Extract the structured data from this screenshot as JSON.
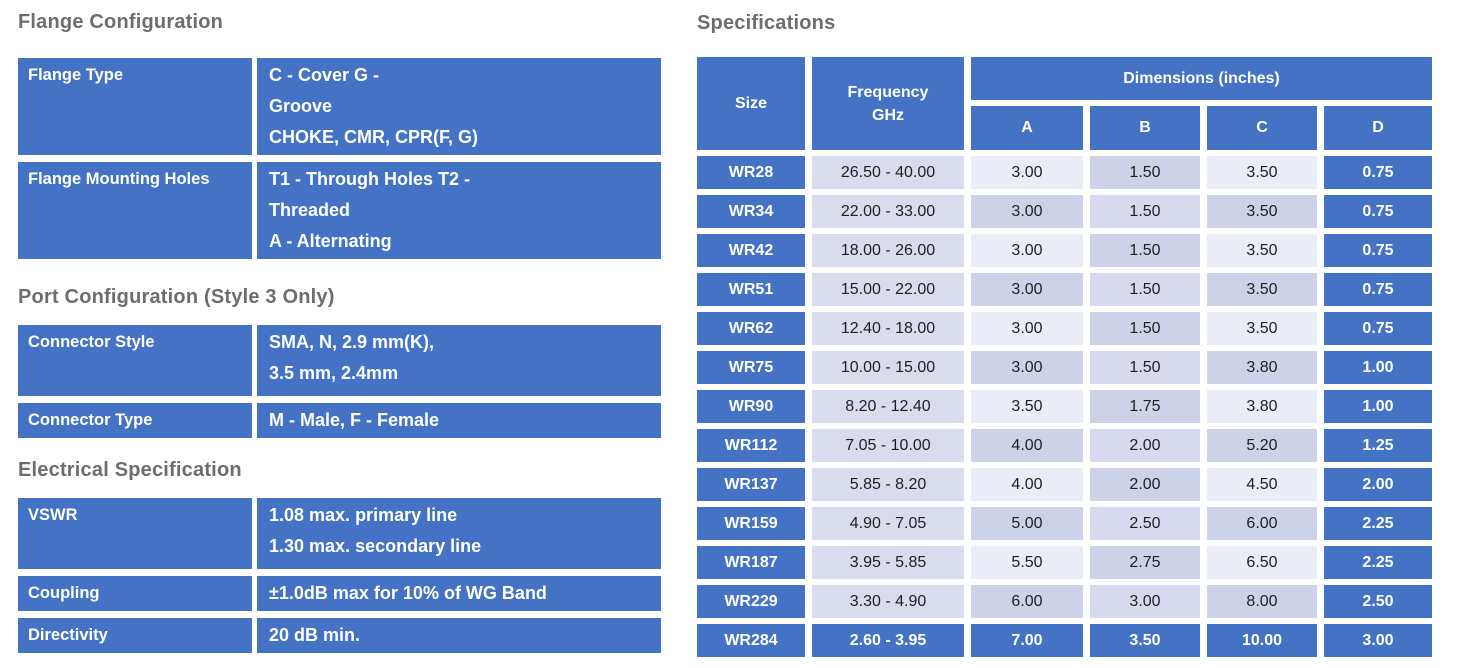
{
  "colors": {
    "accent_blue": "#4472c4",
    "heading_gray": "#6d6d6d",
    "freq_cell": "#d8dcec",
    "light_cell": "#eaecf6",
    "medium_cell": "#cdd2e9"
  },
  "left": {
    "sections": [
      {
        "heading": "Flange Configuration",
        "rows": [
          {
            "label": "Flange Type",
            "lines": [
              "C - Cover G -",
              "Groove",
              "CHOKE, CMR, CPR(F, G)"
            ]
          },
          {
            "label": "Flange Mounting Holes",
            "lines": [
              "T1 - Through Holes T2 -",
              "Threaded",
              "A - Alternating"
            ]
          }
        ]
      },
      {
        "heading": "Port Configuration (Style 3 Only)",
        "rows": [
          {
            "label": "Connector Style",
            "lines": [
              "SMA, N, 2.9 mm(K),",
              "3.5 mm, 2.4mm"
            ]
          },
          {
            "label": "Connector Type",
            "lines": [
              "M - Male, F - Female"
            ]
          }
        ]
      },
      {
        "heading": "Electrical Specification",
        "rows": [
          {
            "label": "VSWR",
            "lines": [
              "1.08 max. primary line",
              "1.30 max. secondary line"
            ]
          },
          {
            "label": "Coupling",
            "lines": [
              "±1.0dB max for 10% of WG Band"
            ]
          },
          {
            "label": "Directivity",
            "lines": [
              "20 dB min."
            ]
          }
        ]
      }
    ]
  },
  "right": {
    "heading": "Specifications",
    "table": {
      "col_size": "Size",
      "col_freq_line1": "Frequency",
      "col_freq_line2": "GHz",
      "dims_banner": "Dimensions  (inches)",
      "dim_cols": [
        "A",
        "B",
        "C",
        "D"
      ],
      "rows": [
        {
          "size": "WR28",
          "freq": "26.50 - 40.00",
          "a": "3.00",
          "b": "1.50",
          "c": "3.50",
          "d": "0.75"
        },
        {
          "size": "WR34",
          "freq": "22.00 - 33.00",
          "a": "3.00",
          "b": "1.50",
          "c": "3.50",
          "d": "0.75"
        },
        {
          "size": "WR42",
          "freq": "18.00 - 26.00",
          "a": "3.00",
          "b": "1.50",
          "c": "3.50",
          "d": "0.75"
        },
        {
          "size": "WR51",
          "freq": "15.00 - 22.00",
          "a": "3.00",
          "b": "1.50",
          "c": "3.50",
          "d": "0.75"
        },
        {
          "size": "WR62",
          "freq": "12.40 - 18.00",
          "a": "3.00",
          "b": "1.50",
          "c": "3.50",
          "d": "0.75"
        },
        {
          "size": "WR75",
          "freq": "10.00 - 15.00",
          "a": "3.00",
          "b": "1.50",
          "c": "3.80",
          "d": "1.00"
        },
        {
          "size": "WR90",
          "freq": "8.20 - 12.40",
          "a": "3.50",
          "b": "1.75",
          "c": "3.80",
          "d": "1.00"
        },
        {
          "size": "WR112",
          "freq": "7.05 - 10.00",
          "a": "4.00",
          "b": "2.00",
          "c": "5.20",
          "d": "1.25"
        },
        {
          "size": "WR137",
          "freq": "5.85 - 8.20",
          "a": "4.00",
          "b": "2.00",
          "c": "4.50",
          "d": "2.00"
        },
        {
          "size": "WR159",
          "freq": "4.90 - 7.05",
          "a": "5.00",
          "b": "2.50",
          "c": "6.00",
          "d": "2.25"
        },
        {
          "size": "WR187",
          "freq": "3.95 - 5.85",
          "a": "5.50",
          "b": "2.75",
          "c": "6.50",
          "d": "2.25"
        },
        {
          "size": "WR229",
          "freq": "3.30 - 4.90",
          "a": "6.00",
          "b": "3.00",
          "c": "8.00",
          "d": "2.50"
        },
        {
          "size": "WR284",
          "freq": "2.60 - 3.95",
          "a": "7.00",
          "b": "3.50",
          "c": "10.00",
          "d": "3.00"
        }
      ]
    }
  }
}
